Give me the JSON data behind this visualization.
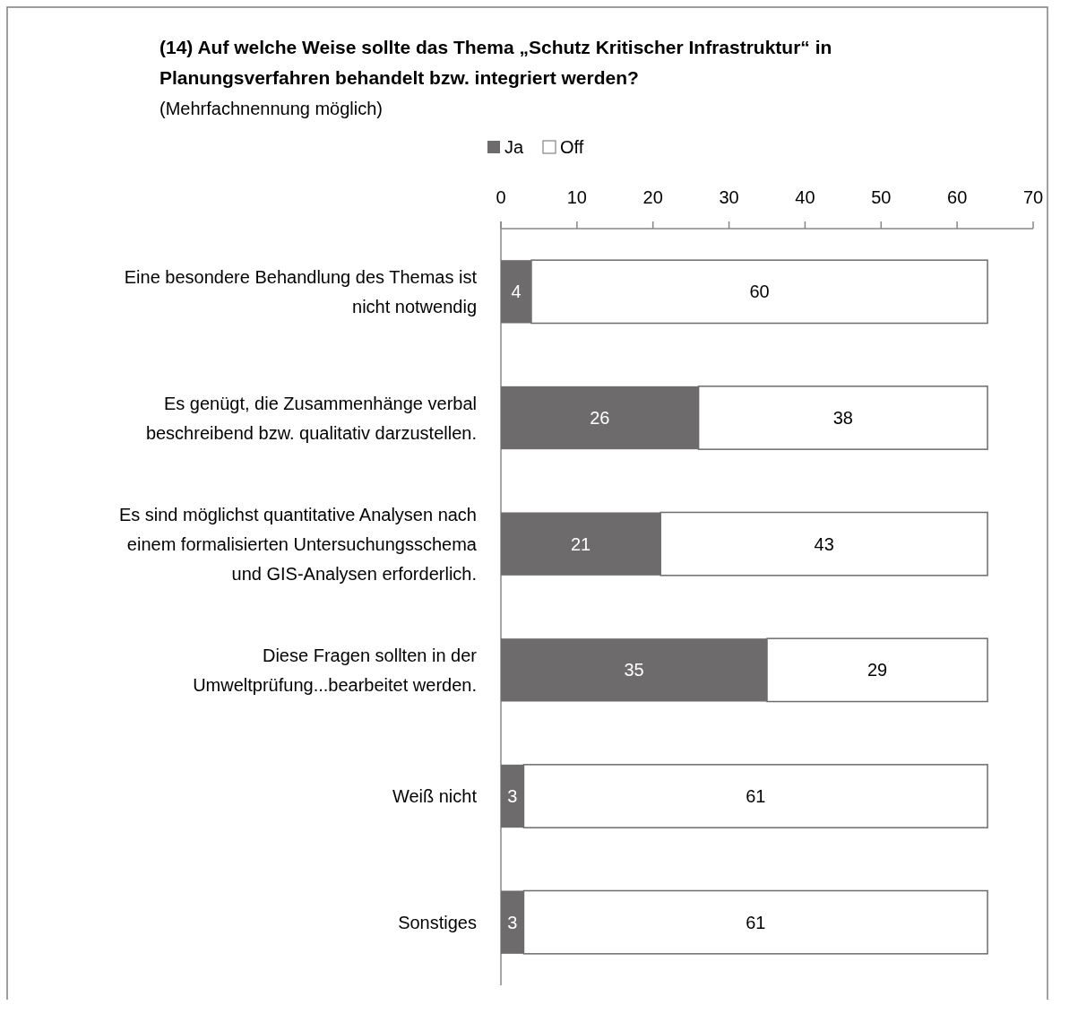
{
  "chart_data": {
    "type": "bar",
    "orientation": "horizontal",
    "stacked": true,
    "title": "(14) Auf welche Weise sollte das Thema „Schutz Kritischer Infrastruktur“ in\nPlanungsverfahren behandelt bzw. integriert werden?",
    "subtitle": "(Mehrfachnennung möglich)",
    "categories": [
      "Eine besondere Behandlung des Themas ist\nnicht notwendig",
      "Es genügt, die Zusammenhänge verbal\nbeschreibend bzw. qualitativ darzustellen.",
      "Es sind möglichst quantitative Analysen nach\neinem formalisierten Untersuchungsschema\nund GIS-Analysen erforderlich.",
      "Diese Fragen sollten in der\nUmweltprüfung...bearbeitet werden.",
      "Weiß nicht",
      "Sonstiges"
    ],
    "series": [
      {
        "name": "Ja",
        "color": "#6d6b6c",
        "values": [
          4,
          26,
          21,
          35,
          3,
          3
        ]
      },
      {
        "name": "Off",
        "color": "#ffffff",
        "values": [
          60,
          38,
          43,
          29,
          61,
          61
        ]
      }
    ],
    "xlim": [
      0,
      70
    ],
    "xticks": [
      0,
      10,
      20,
      30,
      40,
      50,
      60,
      70
    ],
    "grid": false,
    "legend": "top",
    "data_labels": true
  }
}
